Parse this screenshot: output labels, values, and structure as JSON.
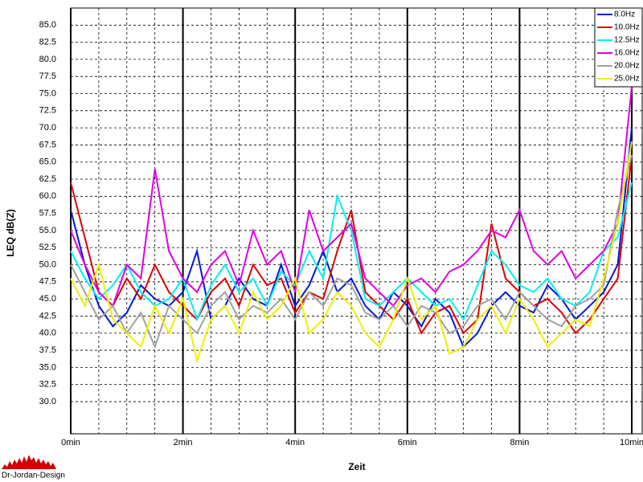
{
  "chart_data": {
    "type": "line",
    "ylabel": "LEQ dB(Z)",
    "xlabel": "Zeit",
    "logo": "Dr-Jordan-Design",
    "x": [
      0,
      0.25,
      0.5,
      0.75,
      1,
      1.25,
      1.5,
      1.75,
      2,
      2.25,
      2.5,
      2.75,
      3,
      3.25,
      3.5,
      3.75,
      4,
      4.25,
      4.5,
      4.75,
      5,
      5.25,
      5.5,
      5.75,
      6,
      6.25,
      6.5,
      6.75,
      7,
      7.25,
      7.5,
      7.75,
      8,
      8.25,
      8.5,
      8.75,
      9,
      9.25,
      9.5,
      9.75,
      10
    ],
    "series": [
      {
        "name": "8.0Hz",
        "color": "#0018d8",
        "values": [
          58,
          50,
          44,
          41,
          43,
          47,
          45,
          44,
          46,
          52,
          42,
          44,
          48,
          45,
          44,
          50,
          44,
          47,
          52,
          46,
          48,
          44,
          42,
          46,
          44,
          41,
          45,
          43,
          38,
          40,
          44,
          46,
          44,
          43,
          47,
          45,
          42,
          44,
          46,
          50,
          70
        ]
      },
      {
        "name": "10.0Hz",
        "color": "#e00000",
        "values": [
          62,
          54,
          46,
          44,
          48,
          45,
          50,
          46,
          44,
          42,
          46,
          48,
          44,
          50,
          47,
          48,
          43,
          46,
          45,
          52,
          58,
          46,
          44,
          42,
          45,
          40,
          43,
          44,
          40,
          42,
          56,
          48,
          46,
          44,
          45,
          43,
          40,
          42,
          45,
          48,
          66
        ]
      },
      {
        "name": "12.5Hz",
        "color": "#00f0f0",
        "values": [
          52,
          48,
          45,
          47,
          50,
          46,
          44,
          45,
          48,
          42,
          47,
          50,
          46,
          48,
          44,
          49,
          47,
          52,
          48,
          60,
          55,
          45,
          44,
          46,
          48,
          46,
          44,
          45,
          42,
          47,
          52,
          50,
          47,
          46,
          48,
          45,
          44,
          46,
          52,
          54,
          62
        ]
      },
      {
        "name": "16.0Hz",
        "color": "#e000e0",
        "values": [
          55,
          50,
          46,
          44,
          50,
          48,
          64,
          52,
          48,
          46,
          50,
          52,
          47,
          55,
          50,
          52,
          46,
          58,
          52,
          54,
          56,
          48,
          46,
          44,
          47,
          48,
          46,
          49,
          50,
          52,
          55,
          54,
          58,
          52,
          50,
          52,
          48,
          50,
          52,
          56,
          76
        ]
      },
      {
        "name": "20.0Hz",
        "color": "#a0a0a0",
        "values": [
          50,
          46,
          42,
          44,
          40,
          43,
          38,
          44,
          42,
          40,
          44,
          46,
          42,
          44,
          43,
          45,
          42,
          46,
          44,
          48,
          47,
          43,
          42,
          44,
          41,
          44,
          43,
          40,
          41,
          44,
          45,
          42,
          46,
          44,
          42,
          41,
          44,
          45,
          47,
          58,
          66
        ]
      },
      {
        "name": "25.0Hz",
        "color": "#f0f000",
        "values": [
          48,
          44,
          50,
          42,
          40,
          38,
          44,
          40,
          45,
          36,
          42,
          44,
          40,
          46,
          42,
          44,
          48,
          40,
          42,
          46,
          44,
          40,
          38,
          42,
          48,
          42,
          44,
          37,
          38,
          42,
          44,
          40,
          45,
          42,
          38,
          40,
          42,
          41,
          48,
          56,
          68
        ]
      }
    ],
    "xlim": [
      0,
      10.2
    ],
    "ylim": [
      25.3,
      87.5
    ],
    "xticks": [
      {
        "value": 0,
        "label": "0min"
      },
      {
        "value": 2,
        "label": "2min"
      },
      {
        "value": 4,
        "label": "4min"
      },
      {
        "value": 6,
        "label": "6min"
      },
      {
        "value": 8,
        "label": "8min"
      },
      {
        "value": 10,
        "label": "10min"
      }
    ],
    "x_minor_grid": [
      0.5,
      1,
      1.5,
      2.5,
      3,
      3.5,
      4.5,
      5,
      5.5,
      6.5,
      7,
      7.5,
      8.5,
      9,
      9.5
    ],
    "yticks": [
      {
        "value": 30,
        "label": "30.0"
      },
      {
        "value": 32.5,
        "label": "32.5"
      },
      {
        "value": 35,
        "label": "35.0"
      },
      {
        "value": 37.5,
        "label": "37.5"
      },
      {
        "value": 40,
        "label": "40.0"
      },
      {
        "value": 42.5,
        "label": "42.5"
      },
      {
        "value": 45,
        "label": "45.0"
      },
      {
        "value": 47.5,
        "label": "47.5"
      },
      {
        "value": 50,
        "label": "50.0"
      },
      {
        "value": 52.5,
        "label": "52.5"
      },
      {
        "value": 55,
        "label": "55.0"
      },
      {
        "value": 57.5,
        "label": "57.5"
      },
      {
        "value": 60,
        "label": "60.0"
      },
      {
        "value": 62.5,
        "label": "62.5"
      },
      {
        "value": 65,
        "label": "65.0"
      },
      {
        "value": 67.5,
        "label": "67.5"
      },
      {
        "value": 70,
        "label": "70.0"
      },
      {
        "value": 72.5,
        "label": "72.5"
      },
      {
        "value": 75,
        "label": "75.0"
      },
      {
        "value": 77.5,
        "label": "77.5"
      },
      {
        "value": 80,
        "label": "80.0"
      },
      {
        "value": 82.5,
        "label": "82.5"
      },
      {
        "value": 85,
        "label": "85.0"
      }
    ],
    "grid": true,
    "legend": "top-right"
  }
}
